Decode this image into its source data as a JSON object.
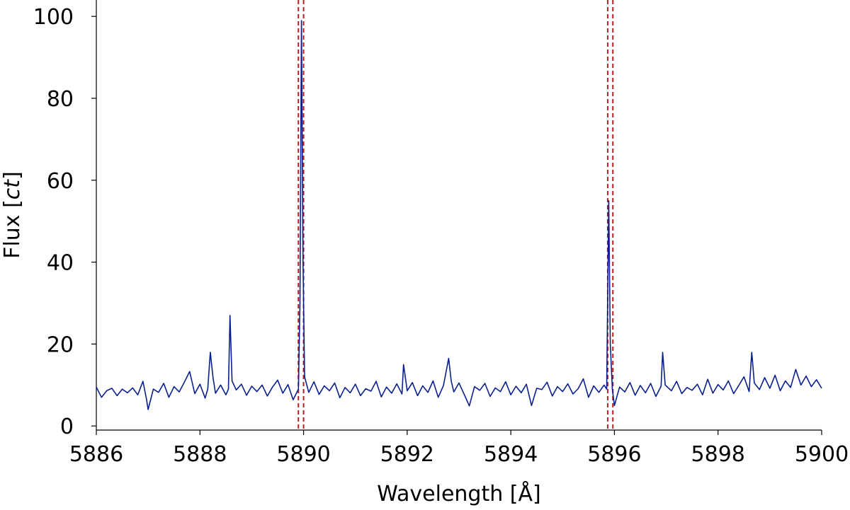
{
  "chart_data": {
    "type": "line",
    "title": "",
    "xlabel": "Wavelength [Å]",
    "ylabel": "Flux [ct]",
    "ylabel_main": "Flux [",
    "ylabel_unit": "ct",
    "ylabel_close": "]",
    "xlim": [
      5886,
      5900
    ],
    "ylim": [
      -1,
      104
    ],
    "xticks": [
      5886,
      5888,
      5890,
      5892,
      5894,
      5896,
      5898,
      5900
    ],
    "yticks": [
      0,
      20,
      40,
      60,
      80,
      100
    ],
    "grid": false,
    "legend": "none",
    "line_color": "#0a1f8f",
    "marker_color": "#b22222",
    "baseline_level": 8.8,
    "vertical_markers": [
      5889.9,
      5890.0,
      5895.87,
      5895.97
    ],
    "series": [
      {
        "points": [
          [
            5886.0,
            9.5
          ],
          [
            5886.1,
            7.0
          ],
          [
            5886.2,
            8.6
          ],
          [
            5886.3,
            9.2
          ],
          [
            5886.4,
            7.4
          ],
          [
            5886.5,
            9.0
          ],
          [
            5886.6,
            8.1
          ],
          [
            5886.7,
            9.3
          ],
          [
            5886.8,
            7.6
          ],
          [
            5886.9,
            10.9
          ],
          [
            5886.97,
            6.5
          ],
          [
            5887.0,
            4.0
          ],
          [
            5887.1,
            9.0
          ],
          [
            5887.2,
            8.2
          ],
          [
            5887.3,
            10.4
          ],
          [
            5887.4,
            7.0
          ],
          [
            5887.5,
            9.6
          ],
          [
            5887.6,
            8.3
          ],
          [
            5887.7,
            10.7
          ],
          [
            5887.8,
            13.3
          ],
          [
            5887.9,
            7.9
          ],
          [
            5888.0,
            10.2
          ],
          [
            5888.1,
            6.8
          ],
          [
            5888.15,
            9.0
          ],
          [
            5888.2,
            18.0
          ],
          [
            5888.25,
            12.0
          ],
          [
            5888.3,
            8.0
          ],
          [
            5888.4,
            10.0
          ],
          [
            5888.5,
            7.6
          ],
          [
            5888.55,
            9.0
          ],
          [
            5888.58,
            27.0
          ],
          [
            5888.62,
            11.0
          ],
          [
            5888.7,
            8.8
          ],
          [
            5888.8,
            10.2
          ],
          [
            5888.9,
            7.5
          ],
          [
            5889.0,
            9.7
          ],
          [
            5889.1,
            8.4
          ],
          [
            5889.2,
            10.0
          ],
          [
            5889.3,
            7.3
          ],
          [
            5889.4,
            9.5
          ],
          [
            5889.5,
            11.2
          ],
          [
            5889.6,
            8.0
          ],
          [
            5889.7,
            10.1
          ],
          [
            5889.8,
            6.4
          ],
          [
            5889.9,
            9.0
          ],
          [
            5889.93,
            30.0
          ],
          [
            5889.96,
            99.0
          ],
          [
            5889.99,
            40.0
          ],
          [
            5890.02,
            12.0
          ],
          [
            5890.1,
            8.2
          ],
          [
            5890.2,
            10.8
          ],
          [
            5890.3,
            7.7
          ],
          [
            5890.4,
            9.8
          ],
          [
            5890.5,
            8.6
          ],
          [
            5890.6,
            10.5
          ],
          [
            5890.7,
            6.9
          ],
          [
            5890.8,
            9.4
          ],
          [
            5890.9,
            8.1
          ],
          [
            5891.0,
            10.2
          ],
          [
            5891.1,
            7.4
          ],
          [
            5891.2,
            9.1
          ],
          [
            5891.3,
            8.5
          ],
          [
            5891.4,
            10.9
          ],
          [
            5891.5,
            7.1
          ],
          [
            5891.6,
            9.5
          ],
          [
            5891.7,
            8.0
          ],
          [
            5891.8,
            10.3
          ],
          [
            5891.9,
            7.8
          ],
          [
            5891.93,
            15.0
          ],
          [
            5892.0,
            8.6
          ],
          [
            5892.1,
            10.6
          ],
          [
            5892.2,
            7.4
          ],
          [
            5892.3,
            9.8
          ],
          [
            5892.4,
            8.2
          ],
          [
            5892.5,
            11.0
          ],
          [
            5892.6,
            7.0
          ],
          [
            5892.7,
            9.9
          ],
          [
            5892.8,
            16.5
          ],
          [
            5892.85,
            11.0
          ],
          [
            5892.9,
            8.3
          ],
          [
            5893.0,
            10.5
          ],
          [
            5893.1,
            7.7
          ],
          [
            5893.2,
            4.9
          ],
          [
            5893.3,
            9.6
          ],
          [
            5893.4,
            8.7
          ],
          [
            5893.5,
            10.4
          ],
          [
            5893.6,
            7.2
          ],
          [
            5893.7,
            9.3
          ],
          [
            5893.8,
            8.4
          ],
          [
            5893.9,
            10.8
          ],
          [
            5894.0,
            7.6
          ],
          [
            5894.1,
            9.7
          ],
          [
            5894.2,
            8.1
          ],
          [
            5894.3,
            10.2
          ],
          [
            5894.4,
            5.0
          ],
          [
            5894.5,
            9.2
          ],
          [
            5894.6,
            8.9
          ],
          [
            5894.7,
            10.7
          ],
          [
            5894.8,
            7.3
          ],
          [
            5894.9,
            9.6
          ],
          [
            5895.0,
            8.4
          ],
          [
            5895.1,
            10.3
          ],
          [
            5895.2,
            7.8
          ],
          [
            5895.3,
            9.1
          ],
          [
            5895.4,
            11.5
          ],
          [
            5895.5,
            7.0
          ],
          [
            5895.6,
            9.8
          ],
          [
            5895.7,
            8.2
          ],
          [
            5895.8,
            10.0
          ],
          [
            5895.85,
            9.0
          ],
          [
            5895.89,
            55.0
          ],
          [
            5895.92,
            20.0
          ],
          [
            5895.96,
            9.0
          ],
          [
            5896.0,
            5.0
          ],
          [
            5896.1,
            9.5
          ],
          [
            5896.2,
            8.3
          ],
          [
            5896.3,
            10.6
          ],
          [
            5896.4,
            7.5
          ],
          [
            5896.5,
            9.9
          ],
          [
            5896.6,
            8.1
          ],
          [
            5896.7,
            10.4
          ],
          [
            5896.8,
            7.2
          ],
          [
            5896.9,
            9.7
          ],
          [
            5896.93,
            18.0
          ],
          [
            5896.98,
            10.0
          ],
          [
            5897.1,
            8.6
          ],
          [
            5897.2,
            10.9
          ],
          [
            5897.3,
            7.9
          ],
          [
            5897.4,
            9.4
          ],
          [
            5897.5,
            8.7
          ],
          [
            5897.6,
            10.2
          ],
          [
            5897.7,
            7.6
          ],
          [
            5897.8,
            11.4
          ],
          [
            5897.9,
            8.0
          ],
          [
            5898.0,
            10.1
          ],
          [
            5898.1,
            8.8
          ],
          [
            5898.2,
            11.0
          ],
          [
            5898.3,
            7.9
          ],
          [
            5898.4,
            9.9
          ],
          [
            5898.5,
            12.0
          ],
          [
            5898.6,
            8.4
          ],
          [
            5898.65,
            18.0
          ],
          [
            5898.7,
            10.5
          ],
          [
            5898.8,
            8.9
          ],
          [
            5898.9,
            11.8
          ],
          [
            5899.0,
            9.2
          ],
          [
            5899.1,
            12.4
          ],
          [
            5899.2,
            8.6
          ],
          [
            5899.3,
            11.0
          ],
          [
            5899.4,
            9.4
          ],
          [
            5899.5,
            13.8
          ],
          [
            5899.6,
            10.0
          ],
          [
            5899.7,
            12.2
          ],
          [
            5899.8,
            9.6
          ],
          [
            5899.9,
            11.3
          ],
          [
            5900.0,
            9.2
          ]
        ]
      }
    ]
  }
}
